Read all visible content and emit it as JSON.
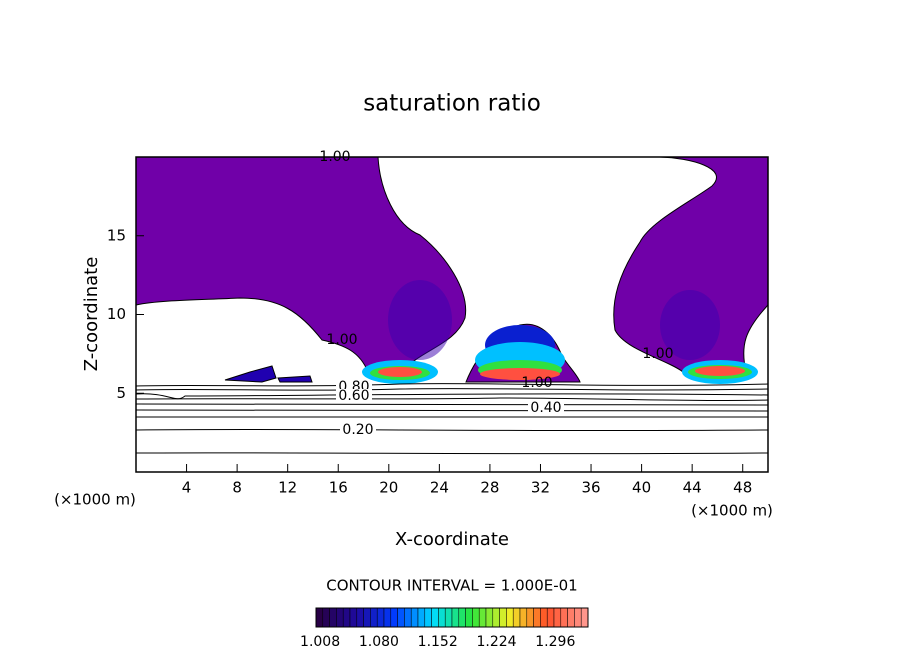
{
  "chart_data": {
    "type": "contour",
    "title": "saturation ratio",
    "x_label": "X-coordinate",
    "y_label": "Z-coordinate",
    "x_unit": "(×1000 m)",
    "x_unit_right": "(×1000 m)",
    "xlim": [
      0,
      50
    ],
    "ylim": [
      0,
      20
    ],
    "xticks": [
      4,
      8,
      12,
      16,
      20,
      24,
      28,
      32,
      36,
      40,
      44,
      48
    ],
    "yticks": [
      5,
      10,
      15
    ],
    "contour_labels": [
      {
        "value": 1,
        "label": "1.00"
      },
      {
        "value": 1,
        "label": "1.00"
      },
      {
        "value": 1,
        "label": "1.00"
      },
      {
        "value": 1,
        "label": "1.00"
      },
      {
        "value": 0.8,
        "label": "0.80"
      },
      {
        "value": 0.6,
        "label": "0.60"
      },
      {
        "value": 0.4,
        "label": "0.40"
      },
      {
        "value": 0.2,
        "label": "0.20"
      }
    ],
    "contour_interval": "CONTOUR INTERVAL = 1.000E-01",
    "colorbar_lim": [
      1.003,
      1.336
    ],
    "colorbar_ticks": [
      {
        "value": 1.008,
        "label": "1.008"
      },
      {
        "value": 1.08,
        "label": "1.080"
      },
      {
        "value": 1.152,
        "label": "1.152"
      },
      {
        "value": 1.224,
        "label": "1.224"
      },
      {
        "value": 1.296,
        "label": "1.296"
      }
    ]
  }
}
